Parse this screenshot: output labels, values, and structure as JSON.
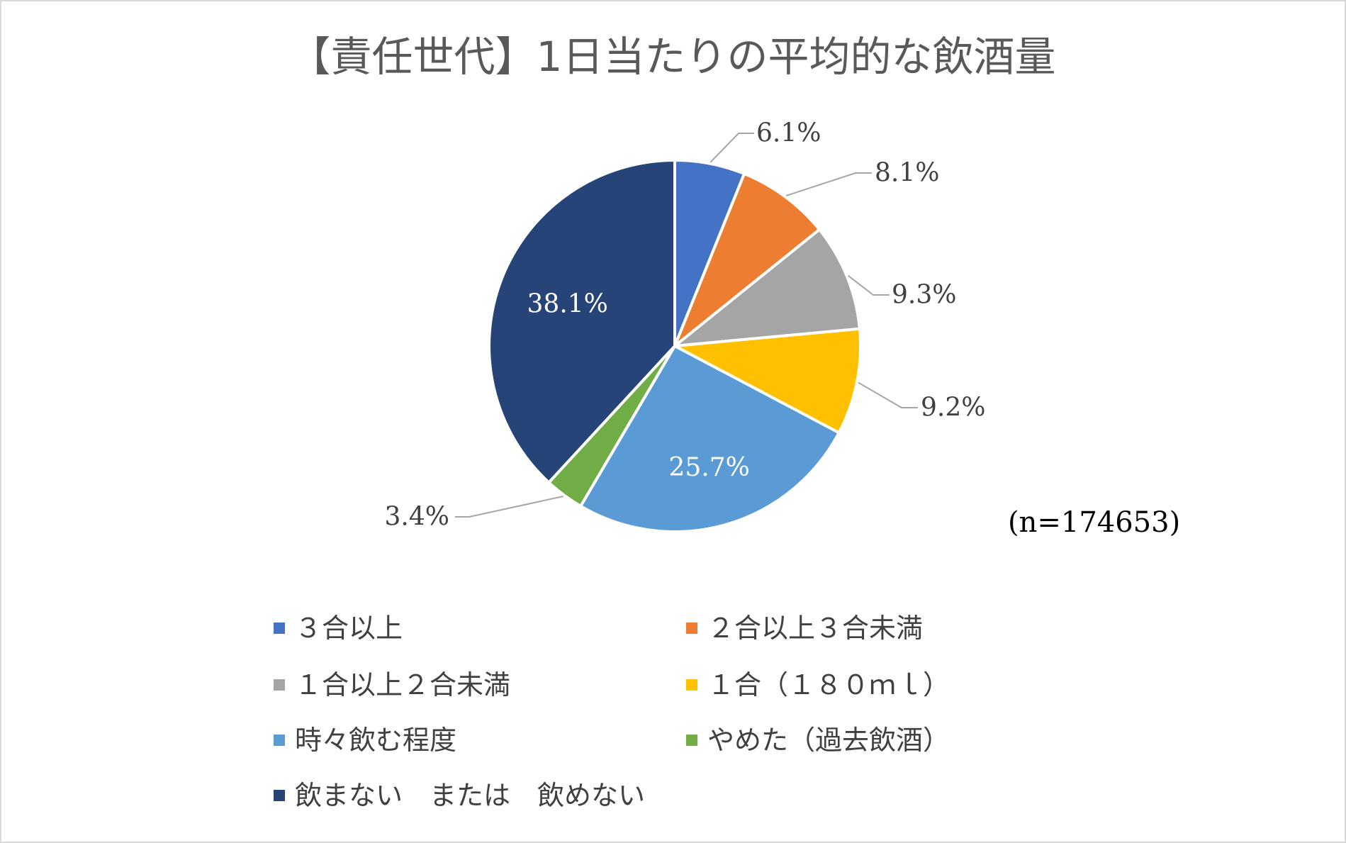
{
  "chart_data": {
    "type": "pie",
    "title": "【責任世代】1日当たりの平均的な飲酒量",
    "sample_note": "(n=174653)",
    "start_angle_deg": 0,
    "direction": "clockwise",
    "legend_position": "bottom",
    "slices": [
      {
        "name": "３合以上",
        "value": 6.1,
        "label": "6.1%",
        "color": "#4472C4",
        "label_placement": "outside"
      },
      {
        "name": "２合以上３合未満",
        "value": 8.1,
        "label": "8.1%",
        "color": "#ED7D31",
        "label_placement": "outside"
      },
      {
        "name": "１合以上２合未満",
        "value": 9.3,
        "label": "9.3%",
        "color": "#A5A5A5",
        "label_placement": "outside"
      },
      {
        "name": "１合（１８０ｍｌ）",
        "value": 9.2,
        "label": "9.2%",
        "color": "#FFC000",
        "label_placement": "outside"
      },
      {
        "name": "時々飲む程度",
        "value": 25.7,
        "label": "25.7%",
        "color": "#5B9BD5",
        "label_placement": "inside"
      },
      {
        "name": "やめた（過去飲酒）",
        "value": 3.4,
        "label": "3.4%",
        "color": "#70AD47",
        "label_placement": "outside"
      },
      {
        "name": "飲まない　または　飲めない",
        "value": 38.1,
        "label": "38.1%",
        "color": "#264478",
        "label_placement": "inside"
      }
    ]
  }
}
